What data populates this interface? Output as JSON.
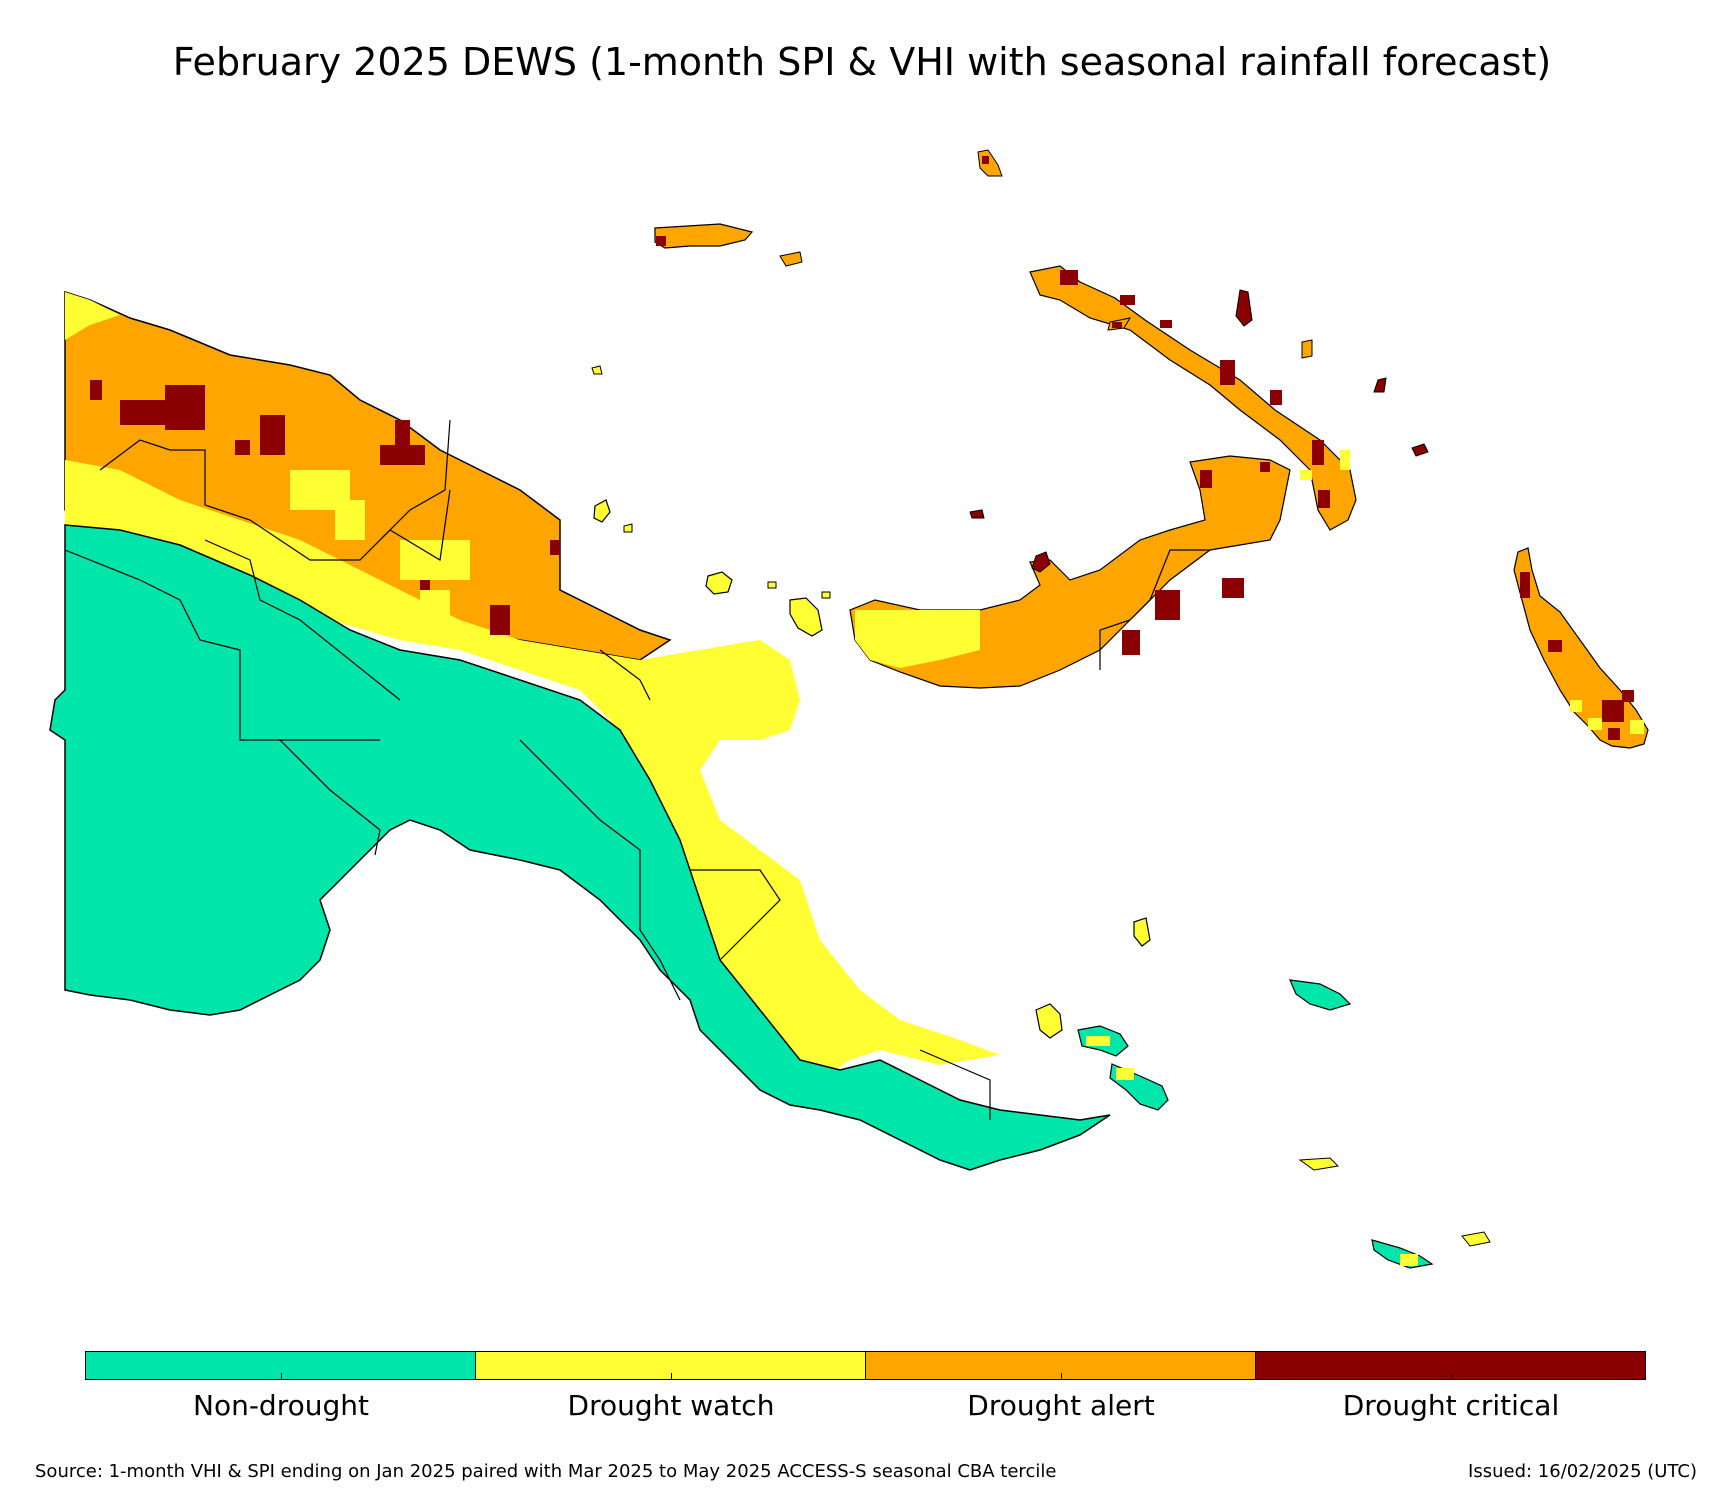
{
  "title": "February 2025 DEWS (1-month SPI & VHI with seasonal rainfall forecast)",
  "colors": {
    "non_drought": "#00e6aa",
    "drought_watch": "#ffff33",
    "drought_alert": "#ffa500",
    "drought_critical": "#8b0000",
    "boundary": "#000000"
  },
  "legend": [
    {
      "label": "Non-drought",
      "color": "#00e6aa"
    },
    {
      "label": "Drought watch",
      "color": "#ffff33"
    },
    {
      "label": "Drought alert",
      "color": "#ffa500"
    },
    {
      "label": "Drought critical",
      "color": "#8b0000"
    }
  ],
  "source": "Source: 1-month VHI & SPI ending on Jan 2025 paired with Mar 2025 to May 2025 ACCESS-S seasonal CBA tercile",
  "issued": "Issued: 16/02/2025 (UTC)"
}
